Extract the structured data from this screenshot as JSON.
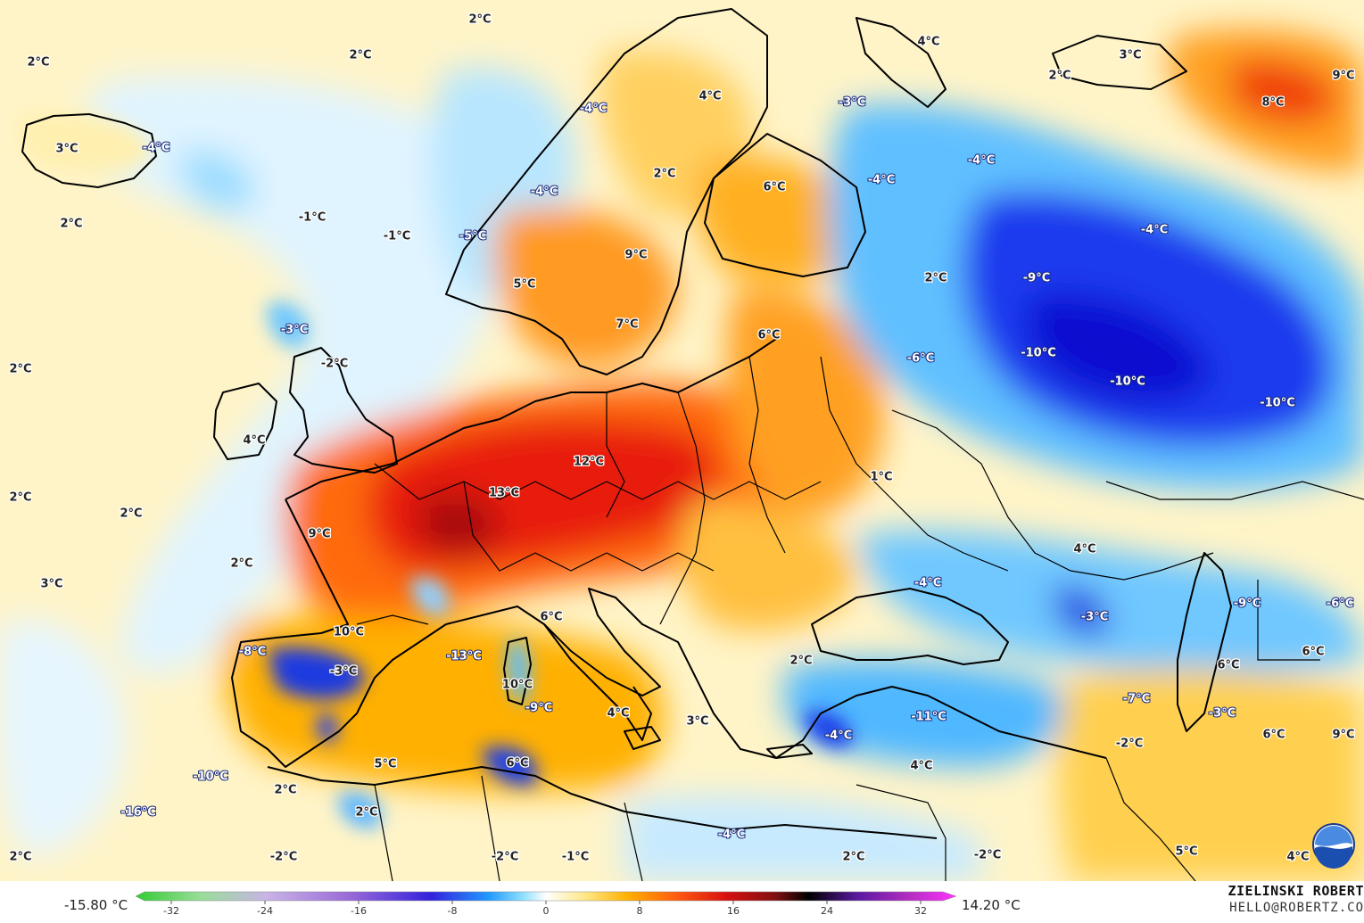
{
  "legend": {
    "min_label": "-15.80 °C",
    "max_label": "14.20 °C",
    "ticks": [
      "-32",
      "-24",
      "-16",
      "-8",
      "0",
      "8",
      "16",
      "24",
      "32"
    ],
    "colors": [
      "#33cc33",
      "#99dd99",
      "#c8b4e6",
      "#9a6ad8",
      "#3322dd",
      "#2299ff",
      "#88ddff",
      "#ffffff",
      "#ffe680",
      "#ffb000",
      "#ff5a10",
      "#d81010",
      "#801010",
      "#000000",
      "#5a1aa0",
      "#b02cc0",
      "#ff33ff"
    ]
  },
  "credit": {
    "name": "ZIELINSKI ROBERT",
    "email": "HELLO@ROBERTZ.CO"
  },
  "logo": {
    "icon": "noaa-logo-icon",
    "text": "NOAA"
  },
  "labels": [
    {
      "t": "2°C",
      "k": "w"
    },
    {
      "t": "2°C",
      "k": "w"
    },
    {
      "t": "2°C",
      "k": "w"
    },
    {
      "t": "3°C",
      "k": "w"
    },
    {
      "t": "-4°C",
      "k": "c"
    },
    {
      "t": "2°C",
      "k": "w"
    },
    {
      "t": "-1°C",
      "k": "w"
    },
    {
      "t": "-1°C",
      "k": "w"
    },
    {
      "t": "-4°C",
      "k": "c"
    },
    {
      "t": "4°C",
      "k": "w"
    },
    {
      "t": "2°C",
      "k": "w"
    },
    {
      "t": "-4°C",
      "k": "c"
    },
    {
      "t": "6°C",
      "k": "w"
    },
    {
      "t": "-5°C",
      "k": "c"
    },
    {
      "t": "9°C",
      "k": "w"
    },
    {
      "t": "5°C",
      "k": "w"
    },
    {
      "t": "7°C",
      "k": "w"
    },
    {
      "t": "4°C",
      "k": "w"
    },
    {
      "t": "3°C",
      "k": "w"
    },
    {
      "t": "2°C",
      "k": "w"
    },
    {
      "t": "9°C",
      "k": "w"
    },
    {
      "t": "8°C",
      "k": "w"
    },
    {
      "t": "-3°C",
      "k": "c"
    },
    {
      "t": "-4°C",
      "k": "c"
    },
    {
      "t": "-4°C",
      "k": "c"
    },
    {
      "t": "-4°C",
      "k": "c"
    },
    {
      "t": "2°C",
      "k": "w"
    },
    {
      "t": "-9°C",
      "k": "c"
    },
    {
      "t": "-10°C",
      "k": "c"
    },
    {
      "t": "-10°C",
      "k": "c"
    },
    {
      "t": "-10°C",
      "k": "c"
    },
    {
      "t": "-6°C",
      "k": "c"
    },
    {
      "t": "6°C",
      "k": "w"
    },
    {
      "t": "2°C",
      "k": "w"
    },
    {
      "t": "-3°C",
      "k": "c"
    },
    {
      "t": "-2°C",
      "k": "w"
    },
    {
      "t": "2°C",
      "k": "w"
    },
    {
      "t": "4°C",
      "k": "w"
    },
    {
      "t": "2°C",
      "k": "w"
    },
    {
      "t": "1°C",
      "k": "w"
    },
    {
      "t": "12°C",
      "k": "w"
    },
    {
      "t": "13°C",
      "k": "w"
    },
    {
      "t": "4°C",
      "k": "w"
    },
    {
      "t": "9°C",
      "k": "w"
    },
    {
      "t": "2°C",
      "k": "w"
    },
    {
      "t": "3°C",
      "k": "w"
    },
    {
      "t": "-4°C",
      "k": "c"
    },
    {
      "t": "-3°C",
      "k": "c"
    },
    {
      "t": "-9°C",
      "k": "c"
    },
    {
      "t": "-6°C",
      "k": "c"
    },
    {
      "t": "-8°C",
      "k": "c"
    },
    {
      "t": "10°C",
      "k": "w"
    },
    {
      "t": "-3°C",
      "k": "w"
    },
    {
      "t": "-13°C",
      "k": "c"
    },
    {
      "t": "6°C",
      "k": "w"
    },
    {
      "t": "10°C",
      "k": "w"
    },
    {
      "t": "-9°C",
      "k": "c"
    },
    {
      "t": "4°C",
      "k": "w"
    },
    {
      "t": "3°C",
      "k": "w"
    },
    {
      "t": "2°C",
      "k": "w"
    },
    {
      "t": "-4°C",
      "k": "c"
    },
    {
      "t": "-11°C",
      "k": "c"
    },
    {
      "t": "-7°C",
      "k": "c"
    },
    {
      "t": "-3°C",
      "k": "c"
    },
    {
      "t": "6°C",
      "k": "w"
    },
    {
      "t": "6°C",
      "k": "w"
    },
    {
      "t": "-2°C",
      "k": "w"
    },
    {
      "t": "6°C",
      "k": "w"
    },
    {
      "t": "9°C",
      "k": "w"
    },
    {
      "t": "5°C",
      "k": "w"
    },
    {
      "t": "6°C",
      "k": "w"
    },
    {
      "t": "-10°C",
      "k": "c"
    },
    {
      "t": "2°C",
      "k": "w"
    },
    {
      "t": "4°C",
      "k": "w"
    },
    {
      "t": "2°C",
      "k": "w"
    },
    {
      "t": "-16°C",
      "k": "c"
    },
    {
      "t": "2°C",
      "k": "w"
    },
    {
      "t": "-2°C",
      "k": "w"
    },
    {
      "t": "-2°C",
      "k": "w"
    },
    {
      "t": "-1°C",
      "k": "w"
    },
    {
      "t": "-4°C",
      "k": "c"
    },
    {
      "t": "2°C",
      "k": "w"
    },
    {
      "t": "-2°C",
      "k": "w"
    },
    {
      "t": "5°C",
      "k": "w"
    },
    {
      "t": "4°C",
      "k": "w"
    }
  ]
}
